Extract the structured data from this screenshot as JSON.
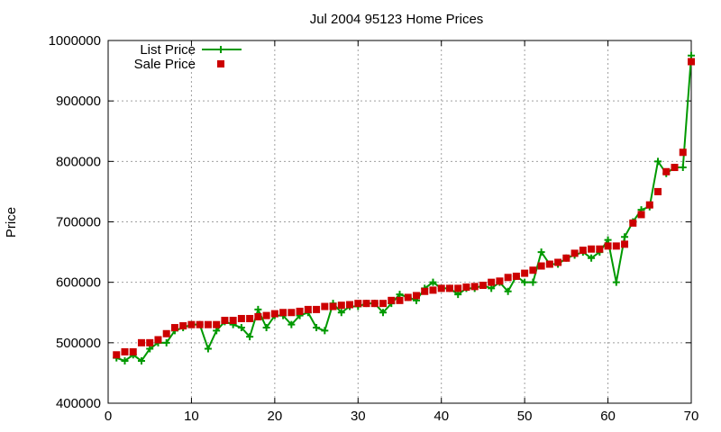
{
  "chart_data": {
    "type": "line",
    "title": "Jul 2004 95123 Home Prices",
    "ylabel": "Price",
    "xlabel": "",
    "xlim": [
      0,
      70
    ],
    "ylim": [
      400000,
      1000000
    ],
    "xticks": [
      0,
      10,
      20,
      30,
      40,
      50,
      60,
      70
    ],
    "yticks": [
      400000,
      500000,
      600000,
      700000,
      800000,
      900000,
      1000000
    ],
    "grid": true,
    "legend_position": "top-left",
    "series": [
      {
        "name": "List Price",
        "style": "line-with-plus-markers",
        "color": "#009900",
        "values": [
          475000,
          470000,
          480000,
          470000,
          490000,
          500000,
          500000,
          520000,
          525000,
          530000,
          530000,
          490000,
          520000,
          535000,
          530000,
          525000,
          510000,
          555000,
          525000,
          545000,
          545000,
          530000,
          545000,
          550000,
          525000,
          520000,
          565000,
          550000,
          560000,
          560000,
          565000,
          565000,
          550000,
          565000,
          580000,
          575000,
          570000,
          590000,
          600000,
          590000,
          590000,
          580000,
          590000,
          590000,
          595000,
          590000,
          600000,
          585000,
          610000,
          600000,
          600000,
          650000,
          630000,
          630000,
          640000,
          645000,
          650000,
          640000,
          650000,
          670000,
          600000,
          675000,
          700000,
          720000,
          725000,
          800000,
          780000,
          790000,
          790000,
          975000
        ]
      },
      {
        "name": "Sale Price",
        "style": "square-markers",
        "color": "#cc0000",
        "values": [
          480000,
          485000,
          485000,
          500000,
          500000,
          505000,
          515000,
          525000,
          528000,
          530000,
          530000,
          530000,
          530000,
          537000,
          537000,
          540000,
          540000,
          543000,
          545000,
          548000,
          550000,
          550000,
          552000,
          555000,
          555000,
          560000,
          560000,
          562000,
          563000,
          565000,
          565000,
          565000,
          565000,
          570000,
          570000,
          575000,
          578000,
          585000,
          587000,
          590000,
          590000,
          590000,
          592000,
          593000,
          595000,
          600000,
          602000,
          608000,
          610000,
          615000,
          620000,
          627000,
          630000,
          633000,
          640000,
          648000,
          653000,
          655000,
          655000,
          660000,
          660000,
          663000,
          698000,
          712000,
          728000,
          750000,
          783000,
          790000,
          815000,
          965000
        ]
      }
    ]
  }
}
